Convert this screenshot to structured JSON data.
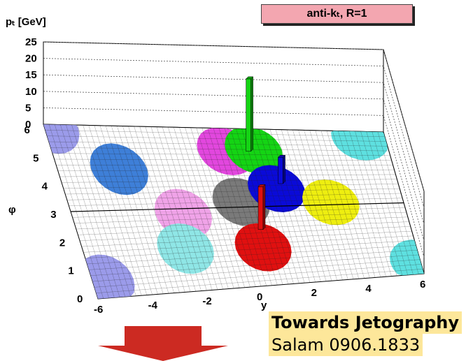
{
  "chart_data": {
    "type": "lego-plot",
    "title": "anti-kₜ, R=1",
    "zlabel": "pₜ [GeV]",
    "xlabel": "y",
    "ylabel": "φ",
    "xlim": [
      -6,
      6
    ],
    "ylim": [
      0,
      6.2
    ],
    "zlim": [
      0,
      25
    ],
    "x_ticks": [
      "-6",
      "-4",
      "-2",
      "0",
      "2",
      "4",
      "6"
    ],
    "y_ticks": [
      "0",
      "1",
      "2",
      "3",
      "4",
      "5",
      "6"
    ],
    "z_ticks": [
      "0",
      "5",
      "10",
      "15",
      "20",
      "25"
    ],
    "jets": [
      {
        "y": -5.5,
        "phi": 0.6,
        "color": "#9b9bea"
      },
      {
        "y": -5.8,
        "phi": 6.1,
        "color": "#9b9bea"
      },
      {
        "y": -3.8,
        "phi": 4.6,
        "color": "#3e7fd8"
      },
      {
        "y": -2.0,
        "phi": 2.9,
        "color": "#f0a3e8"
      },
      {
        "y": -2.3,
        "phi": 1.6,
        "color": "#8fe6e6"
      },
      {
        "y": 0.2,
        "phi": 5.3,
        "color": "#e247de"
      },
      {
        "y": 1.2,
        "phi": 5.35,
        "color": "#14d414"
      },
      {
        "y": 5.1,
        "phi": 5.9,
        "color": "#5ee0e0"
      },
      {
        "y": 0.2,
        "phi": 3.3,
        "color": "#7a7a7a"
      },
      {
        "y": 1.6,
        "phi": 3.8,
        "color": "#0a0ad8"
      },
      {
        "y": 3.4,
        "phi": 3.2,
        "color": "#eeee10"
      },
      {
        "y": 0.5,
        "phi": 1.5,
        "color": "#e01010"
      },
      {
        "y": 5.9,
        "phi": 0.55,
        "color": "#5ee0e0"
      }
    ],
    "towers": [
      {
        "y": 1.0,
        "phi": 5.3,
        "pt": 22,
        "color": "#14d414"
      },
      {
        "y": 1.8,
        "phi": 4.0,
        "pt": 8,
        "color": "#0a0ad8"
      },
      {
        "y": 0.6,
        "phi": 2.2,
        "pt": 13,
        "color": "#e01010"
      }
    ]
  },
  "caption": {
    "line1": "Towards Jetography",
    "line2": "Salam 0906.1833"
  }
}
